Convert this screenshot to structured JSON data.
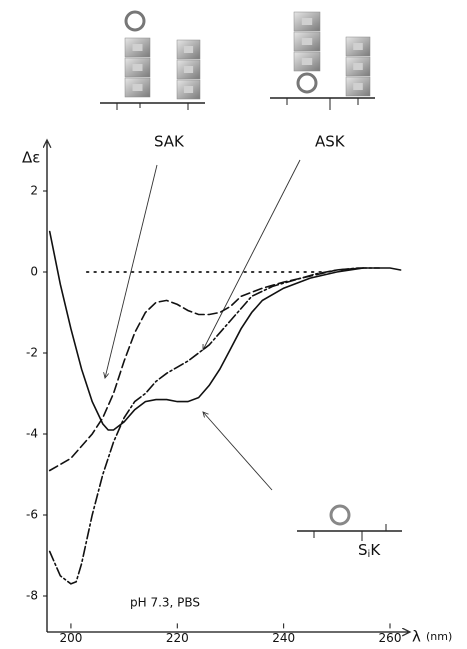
{
  "chart_data": {
    "type": "line",
    "y_label": "Δε",
    "x_label": "λ",
    "x_unit": "(nm)",
    "xlim": [
      195.5,
      264
    ],
    "xticks": [
      200,
      220,
      240,
      260
    ],
    "ylim": [
      -8.8,
      3.3
    ],
    "yticks": [
      2,
      0,
      -2,
      -4,
      -6,
      -8
    ],
    "annotations": [
      "SAK",
      "ASK",
      "pH 7.3, PBS"
    ],
    "sik_label": [
      "S",
      "i",
      "K"
    ],
    "series": [
      {
        "style": "solid",
        "color": "#111111",
        "x": [
          196,
          198,
          200,
          202,
          204,
          206,
          207,
          208,
          210,
          212,
          214,
          216,
          218,
          220,
          222,
          224,
          226,
          228,
          230,
          232,
          234,
          236,
          240,
          245,
          250,
          255,
          260,
          262
        ],
        "values": [
          1.0,
          -0.3,
          -1.4,
          -2.4,
          -3.2,
          -3.75,
          -3.9,
          -3.9,
          -3.7,
          -3.4,
          -3.2,
          -3.15,
          -3.15,
          -3.2,
          -3.2,
          -3.1,
          -2.8,
          -2.4,
          -1.9,
          -1.4,
          -1.0,
          -0.7,
          -0.4,
          -0.15,
          0.0,
          0.1,
          0.1,
          0.05
        ]
      },
      {
        "style": "dashed",
        "color": "#111111",
        "x": [
          196,
          200,
          204,
          206,
          208,
          210,
          212,
          214,
          216,
          218,
          220,
          222,
          224,
          226,
          228,
          230,
          232,
          236,
          240,
          245,
          250,
          255
        ],
        "values": [
          -4.9,
          -4.6,
          -4.0,
          -3.6,
          -3.0,
          -2.2,
          -1.5,
          -1.0,
          -0.75,
          -0.7,
          -0.8,
          -0.95,
          -1.05,
          -1.05,
          -1.0,
          -0.85,
          -0.6,
          -0.4,
          -0.25,
          -0.1,
          0.05,
          0.1
        ]
      },
      {
        "style": "dashdot",
        "color": "#111111",
        "x": [
          196,
          198,
          200,
          201,
          202,
          204,
          206,
          208,
          210,
          212,
          214,
          216,
          218,
          220,
          222,
          224,
          226,
          228,
          230,
          232,
          234,
          238,
          242,
          246,
          250,
          254,
          258
        ],
        "values": [
          -6.9,
          -7.5,
          -7.7,
          -7.65,
          -7.2,
          -6.0,
          -5.0,
          -4.2,
          -3.6,
          -3.2,
          -3.0,
          -2.7,
          -2.5,
          -2.35,
          -2.2,
          -2.0,
          -1.8,
          -1.5,
          -1.2,
          -0.9,
          -0.6,
          -0.35,
          -0.2,
          -0.05,
          0.05,
          0.1,
          0.1
        ]
      },
      {
        "style": "dotted",
        "color": "#333333",
        "x": [
          203,
          248
        ],
        "values": [
          0,
          0
        ]
      }
    ]
  }
}
